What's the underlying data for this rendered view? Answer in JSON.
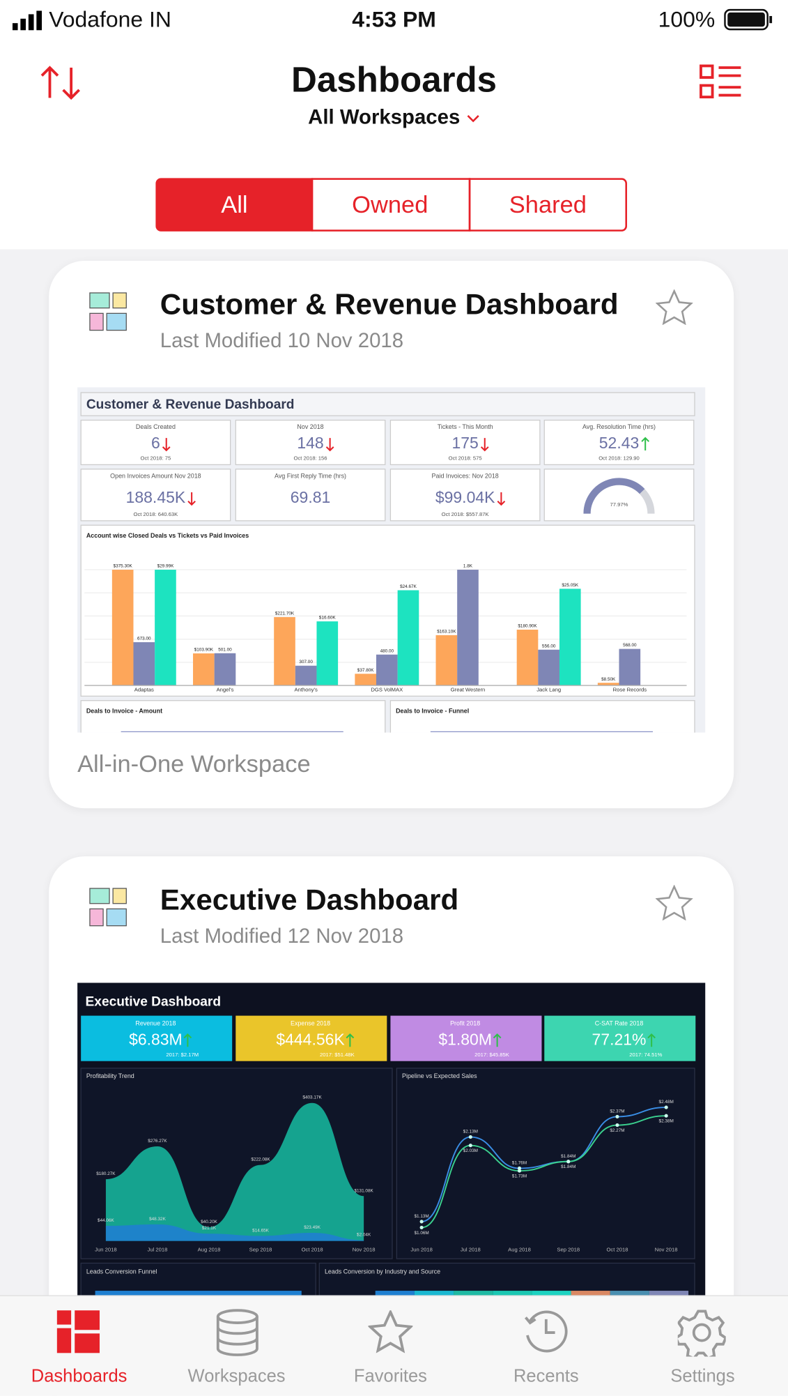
{
  "status_bar": {
    "carrier": "Vodafone IN",
    "time": "4:53 PM",
    "battery": "100%"
  },
  "header": {
    "title": "Dashboards",
    "workspace_filter": "All Workspaces"
  },
  "segments": [
    "All",
    "Owned",
    "Shared"
  ],
  "cards": [
    {
      "title": "Customer & Revenue Dashboard",
      "modified": "Last Modified 10 Nov 2018",
      "workspace": "All-in-One Workspace",
      "thumbnail": {
        "title": "Customer & Revenue Dashboard",
        "kpis": [
          {
            "label": "Deals Created",
            "value": "6",
            "compare": "Oct 2018: 75",
            "trend": "down"
          },
          {
            "label": "Nov 2018",
            "value": "148",
            "compare": "Oct 2018: 156",
            "trend": "down"
          },
          {
            "label": "Tickets - This Month",
            "value": "175",
            "compare": "Oct 2018: 575",
            "trend": "down"
          },
          {
            "label": "Avg. Resolution Time (hrs)",
            "value": "52.43",
            "compare": "Oct 2018: 129.90",
            "trend": "up"
          },
          {
            "label": "Open Invoices Amount Nov 2018",
            "value": "188.45K",
            "compare": "Oct 2018: 640.63K",
            "trend": "down"
          },
          {
            "label": "Avg First Reply Time (hrs)",
            "value": "69.81"
          },
          {
            "label": "Paid Invoices: Nov 2018",
            "value": "$99.04K",
            "compare": "Oct 2018: $557.87K",
            "trend": "down"
          },
          {
            "gauge": "77.97%"
          }
        ],
        "chart": {
          "title": "Account wise Closed Deals vs Tickets vs Paid Invoices",
          "categories": [
            "Adaptas",
            "Angel's",
            "Anthony's",
            "DGS VolMAX",
            "Great Western",
            "Jack Lang",
            "Rose Records"
          ],
          "series": [
            {
              "color": "#fda65a",
              "values": [
                375.3,
                103.9,
                221.7,
                37.8,
                163.1,
                180.9,
                8.5
              ],
              "value_labels": [
                "$375.30K",
                "$103.90K",
                "$221.70K",
                "$37.80K",
                "$163.10K",
                "$180.90K",
                "$8.50K"
              ]
            },
            {
              "color": "#7f86b5",
              "values": [
                673,
                501,
                307,
                480,
                1800,
                556,
                568
              ],
              "value_labels": [
                "673.00",
                "501.00",
                "307.00",
                "480.00",
                "1.8K",
                "556.00",
                "568.00"
              ]
            },
            {
              "color": "#1de3c0",
              "values": [
                29.99,
                null,
                16.6,
                24.67,
                null,
                25.05,
                null
              ],
              "value_labels": [
                "$29.99K",
                null,
                "$16.60K",
                "$24.67K",
                null,
                "$25.05K",
                null
              ]
            }
          ]
        },
        "bottom_charts": [
          "Deals to Invoice - Amount",
          "Deals to Invoice - Funnel"
        ]
      }
    },
    {
      "title": "Executive Dashboard",
      "modified": "Last Modified 12 Nov 2018",
      "thumbnail": {
        "title": "Executive Dashboard",
        "kpis": [
          {
            "label": "Revenue 2018",
            "value": "$6.83M",
            "compare": "2017: $2.17M",
            "color": "#0bbde0"
          },
          {
            "label": "Expense 2018",
            "value": "$444.56K",
            "compare": "2017: $51.48K",
            "color": "#eac52a"
          },
          {
            "label": "Profit 2018",
            "value": "$1.80M",
            "compare": "2017: $45.85K",
            "color": "#c08be3"
          },
          {
            "label": "C-SAT Rate 2018",
            "value": "77.21%",
            "compare": "2017: 74.51%",
            "color": "#3dd5b0"
          }
        ],
        "months": [
          "Jun 2018",
          "Jul 2018",
          "Aug 2018",
          "Sep 2018",
          "Oct 2018",
          "Nov 2018"
        ],
        "profitability": {
          "title": "Profitability Trend",
          "series": [
            {
              "color": "#16b39a",
              "values": [
                180.27,
                276.27,
                40.2,
                222.08,
                403.17,
                131.08
              ],
              "value_labels": [
                "$180.27K",
                "$276.27K",
                "$40.20K",
                "$222.08K",
                "$403.17K",
                "$131.08K"
              ]
            },
            {
              "color": "#1f7fd0",
              "values": [
                44.06,
                48.32,
                21.1,
                14.65,
                23.49,
                2.04
              ],
              "value_labels": [
                "$44.06K",
                "$48.32K",
                "$21.1K",
                "$14.65K",
                "$23.49K",
                "$2.04K"
              ]
            }
          ]
        },
        "pipeline": {
          "title": "Pipeline vs Expected Sales",
          "series": [
            {
              "color": "#3a8ee6",
              "values": [
                1.13,
                2.13,
                1.76,
                1.84,
                2.37,
                2.48
              ],
              "value_labels": [
                "$1.13M",
                "$2.13M",
                "$1.76M",
                "$1.84M",
                "$2.37M",
                "$2.48M"
              ]
            },
            {
              "color": "#3bd18f",
              "values": [
                1.06,
                2.03,
                1.73,
                1.84,
                2.27,
                2.38
              ],
              "value_labels": [
                "$1.06M",
                "$2.03M",
                "$1.73M",
                "$1.84M",
                "$2.27M",
                "$2.38M"
              ]
            }
          ]
        },
        "bottom_charts": [
          "Leads Conversion Funnel",
          "Leads Conversion by Industry and Source"
        ]
      }
    }
  ],
  "tabs": [
    "Dashboards",
    "Workspaces",
    "Favorites",
    "Recents",
    "Settings"
  ]
}
